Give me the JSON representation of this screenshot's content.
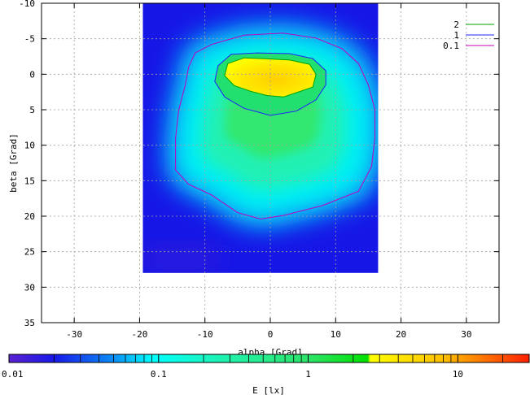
{
  "chart_data": {
    "type": "heatmap",
    "xlabel": "alpha [Grad]",
    "ylabel": "beta [Grad]",
    "xlim": [
      -35,
      35
    ],
    "ylim": [
      -10,
      35
    ],
    "y_inverted": true,
    "x_ticks": [
      -30,
      -20,
      -10,
      0,
      10,
      20,
      30
    ],
    "y_ticks": [
      -10,
      -5,
      0,
      5,
      10,
      15,
      20,
      25,
      30,
      35
    ],
    "grid": true,
    "data_extent": {
      "x": [
        -19.5,
        16.5
      ],
      "y": [
        -10,
        28
      ]
    },
    "colorbar": {
      "label": "E [lx]",
      "scale": "log",
      "range": [
        0.01,
        30
      ],
      "ticks": [
        "0.01",
        "0.1",
        "1",
        "10"
      ],
      "tick_values": [
        0.01,
        0.1,
        1,
        10
      ],
      "colors": [
        {
          "value": 0.01,
          "color": "#5a22d0"
        },
        {
          "value": 0.02,
          "color": "#1818e8"
        },
        {
          "value": 0.05,
          "color": "#0a8cf6"
        },
        {
          "value": 0.09,
          "color": "#00ffff"
        },
        {
          "value": 0.3,
          "color": "#22f0a8"
        },
        {
          "value": 1.0,
          "color": "#2ee46a"
        },
        {
          "value": 2.5,
          "color": "#00e000"
        },
        {
          "value": 2.6,
          "color": "#ffff00"
        },
        {
          "value": 8,
          "color": "#ffc000"
        },
        {
          "value": 30,
          "color": "#ff2000"
        }
      ]
    },
    "legend": {
      "position": "top-right",
      "entries": [
        {
          "label": "2",
          "color": "#00a000"
        },
        {
          "label": "1",
          "color": "#2020ff"
        },
        {
          "label": "0.1",
          "color": "#c000c0"
        }
      ]
    },
    "contours": [
      {
        "level": 2,
        "points": [
          [
            -6.5,
            -1.5
          ],
          [
            -4,
            -2.3
          ],
          [
            -1,
            -2.2
          ],
          [
            3,
            -2.0
          ],
          [
            6,
            -1.4
          ],
          [
            7,
            0
          ],
          [
            6.5,
            1.8
          ],
          [
            4,
            2.6
          ],
          [
            2,
            3.2
          ],
          [
            -0.5,
            3.0
          ],
          [
            -3,
            2.4
          ],
          [
            -5.5,
            1.6
          ],
          [
            -7,
            0.2
          ]
        ]
      },
      {
        "level": 1,
        "points": [
          [
            -6,
            -2.8
          ],
          [
            -2,
            -3.0
          ],
          [
            3,
            -2.9
          ],
          [
            6.5,
            -2.2
          ],
          [
            8.5,
            -0.5
          ],
          [
            8.5,
            1.5
          ],
          [
            7,
            3.6
          ],
          [
            4,
            5.2
          ],
          [
            0,
            5.8
          ],
          [
            -4,
            4.8
          ],
          [
            -7,
            3.2
          ],
          [
            -8.5,
            1.0
          ],
          [
            -8,
            -1.2
          ]
        ]
      },
      {
        "level": 0.1,
        "points": [
          [
            -9,
            -4.2
          ],
          [
            -4,
            -5.5
          ],
          [
            2,
            -5.8
          ],
          [
            7,
            -5.1
          ],
          [
            11,
            -3.6
          ],
          [
            13.5,
            -1.5
          ],
          [
            15,
            1.5
          ],
          [
            16,
            5
          ],
          [
            16,
            9
          ],
          [
            15.5,
            13
          ],
          [
            13.5,
            16.5
          ],
          [
            8,
            18.5
          ],
          [
            2,
            19.9
          ],
          [
            -1.5,
            20.4
          ],
          [
            -5,
            19.5
          ],
          [
            -9,
            17
          ],
          [
            -12.5,
            15.5
          ],
          [
            -14.5,
            13.5
          ],
          [
            -14.5,
            9
          ],
          [
            -14,
            5
          ],
          [
            -13,
            1.5
          ],
          [
            -12.5,
            -1
          ],
          [
            -11.5,
            -3
          ]
        ]
      }
    ]
  }
}
